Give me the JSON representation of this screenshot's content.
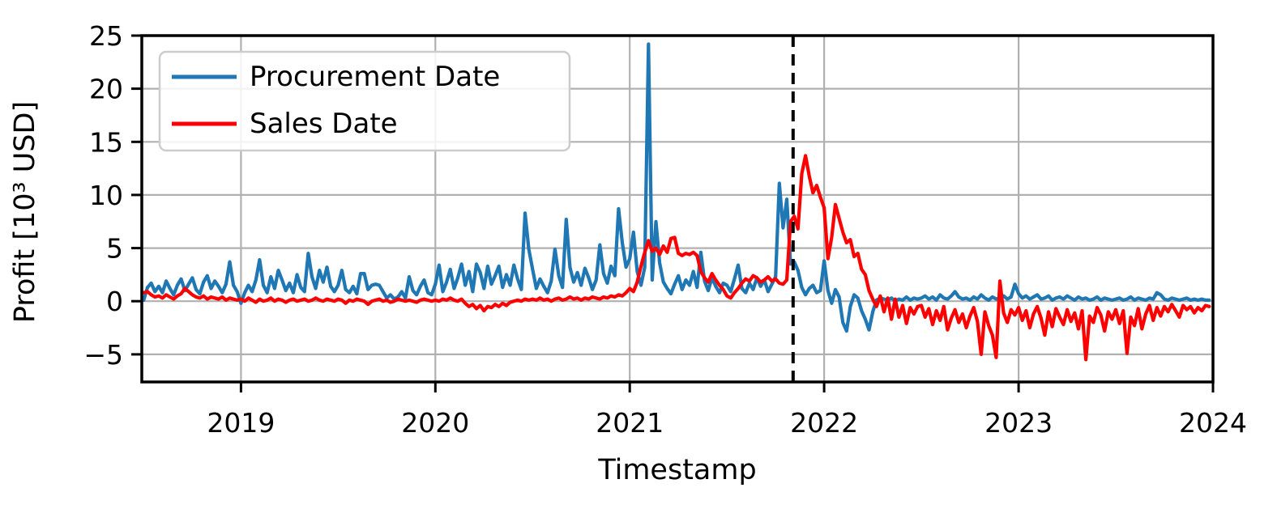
{
  "chart_data": {
    "type": "line",
    "title": "",
    "xlabel": "Timestamp",
    "ylabel": "Profit [10³ USD]",
    "xlim": [
      2018.49,
      2024.0
    ],
    "ylim": [
      -7.6,
      25
    ],
    "x_ticks": [
      2019,
      2020,
      2021,
      2022,
      2023,
      2024
    ],
    "x_tick_labels": [
      "2019",
      "2020",
      "2021",
      "2022",
      "2023",
      "2024"
    ],
    "y_ticks": [
      -5,
      0,
      5,
      10,
      15,
      20,
      25
    ],
    "y_tick_labels": [
      "−5",
      "0",
      "5",
      "10",
      "15",
      "20",
      "25"
    ],
    "grid": true,
    "legend_position": "upper left",
    "vline": {
      "x": 2021.84,
      "style": "dashed",
      "color": "#000000"
    },
    "x_start": 2018.5,
    "x_step": 0.0192308,
    "series": [
      {
        "name": "Procurement Date",
        "color": "#1f77b4",
        "values": [
          0.1,
          1.3,
          1.7,
          0.9,
          1.4,
          0.8,
          1.9,
          1.2,
          0.6,
          1.5,
          2.1,
          1.0,
          1.6,
          2.2,
          1.1,
          0.7,
          1.8,
          2.4,
          1.2,
          1.9,
          1.4,
          0.8,
          1.6,
          3.7,
          1.5,
          0.9,
          -0.2,
          0.8,
          1.5,
          0.9,
          2.0,
          3.9,
          1.5,
          0.8,
          2.3,
          1.2,
          2.9,
          2.0,
          1.0,
          1.7,
          0.8,
          2.5,
          1.3,
          0.9,
          4.5,
          2.3,
          1.2,
          2.9,
          1.8,
          3.2,
          1.4,
          0.9,
          1.5,
          2.9,
          1.1,
          0.8,
          1.4,
          0.7,
          2.6,
          2.6,
          1.1,
          1.5,
          1.6,
          1.5,
          0.9,
          0.3,
          0.6,
          0.2,
          0.4,
          0.9,
          0.3,
          2.3,
          1.0,
          0.6,
          1.4,
          2.0,
          0.8,
          0.6,
          1.6,
          3.4,
          0.9,
          1.8,
          3.0,
          1.2,
          2.2,
          3.5,
          1.5,
          2.8,
          0.9,
          3.5,
          2.7,
          1.2,
          3.3,
          1.6,
          2.4,
          3.3,
          1.3,
          2.5,
          1.5,
          3.4,
          2.1,
          1.1,
          8.3,
          4.9,
          3.0,
          1.2,
          2.1,
          1.4,
          0.8,
          1.9,
          4.9,
          2.4,
          1.3,
          7.7,
          3.2,
          1.8,
          2.7,
          1.5,
          3.1,
          2.2,
          1.1,
          2.0,
          5.3,
          2.6,
          1.7,
          3.3,
          2.4,
          8.7,
          5.5,
          3.2,
          4.0,
          6.5,
          2.8,
          1.5,
          3.2,
          24.2,
          2.0,
          7.5,
          3.6,
          1.8,
          1.2,
          0.7,
          1.6,
          2.4,
          1.1,
          2.0,
          1.5,
          2.8,
          1.3,
          4.6,
          1.9,
          1.0,
          2.2,
          1.4,
          0.8,
          1.7,
          1.5,
          0.9,
          2.1,
          3.4,
          1.2,
          0.8,
          1.7,
          1.1,
          2.2,
          1.4,
          2.0,
          0.9,
          1.6,
          2.3,
          11.1,
          6.9,
          9.6,
          3.5,
          3.7,
          2.9,
          1.3,
          0.6,
          1.2,
          1.5,
          0.8,
          1.0,
          3.8,
          1.0,
          -0.2,
          1.1,
          0.4,
          -2.0,
          -2.8,
          -0.5,
          0.6,
          0.3,
          -0.9,
          -1.7,
          -2.7,
          -1.0,
          0.1,
          0.3,
          0.2,
          0.1,
          0.3,
          0.0,
          0.2,
          0.1,
          0.4,
          0.1,
          0.3,
          0.2,
          0.3,
          0.5,
          0.2,
          0.4,
          0.1,
          0.6,
          0.3,
          0.2,
          0.5,
          0.9,
          0.4,
          0.2,
          0.3,
          0.1,
          0.4,
          0.2,
          0.6,
          0.3,
          0.1,
          0.4,
          0.2,
          0.3,
          0.5,
          0.2,
          0.4,
          1.6,
          0.7,
          0.3,
          0.5,
          0.2,
          0.4,
          0.6,
          0.2,
          0.3,
          0.5,
          0.1,
          0.3,
          0.4,
          0.2,
          0.5,
          0.3,
          0.1,
          0.4,
          0.2,
          0.3,
          0.1,
          0.2,
          0.4,
          0.1,
          0.3,
          0.2,
          0.1,
          0.2,
          0.3,
          0.1,
          0.2,
          0.4,
          0.1,
          0.3,
          0.2,
          0.1,
          0.3,
          0.2,
          0.8,
          0.6,
          0.2,
          0.1,
          0.3,
          0.2,
          0.1,
          0.2,
          0.3,
          0.1,
          0.2,
          0.1,
          0.2,
          0.1,
          0.1
        ]
      },
      {
        "name": "Sales Date",
        "color": "#ff0000",
        "values": [
          0.8,
          0.9,
          0.6,
          0.4,
          0.5,
          0.3,
          0.6,
          0.4,
          0.2,
          0.5,
          0.7,
          1.2,
          0.9,
          0.6,
          0.4,
          0.3,
          0.5,
          0.2,
          0.4,
          0.3,
          0.2,
          0.4,
          0.1,
          0.3,
          0.2,
          0.1,
          0.2,
          0.0,
          0.3,
          0.1,
          -0.1,
          0.2,
          0.0,
          0.1,
          0.3,
          0.0,
          0.2,
          0.1,
          -0.1,
          0.1,
          0.2,
          0.0,
          0.1,
          0.2,
          0.0,
          0.1,
          0.3,
          0.1,
          0.0,
          0.2,
          0.1,
          0.0,
          0.2,
          0.1,
          -0.2,
          0.1,
          0.0,
          0.2,
          0.1,
          0.0,
          -0.3,
          0.0,
          0.1,
          0.2,
          0.0,
          0.1,
          -0.1,
          0.0,
          0.2,
          0.1,
          0.0,
          0.1,
          0.0,
          -0.1,
          0.1,
          0.2,
          0.1,
          0.0,
          0.1,
          0.0,
          0.2,
          0.1,
          0.3,
          0.1,
          0.0,
          0.2,
          -0.2,
          -0.5,
          -0.3,
          -0.7,
          -0.4,
          -0.9,
          -0.5,
          -0.6,
          -0.3,
          -0.5,
          -0.2,
          -0.4,
          -0.1,
          0.0,
          0.1,
          0.0,
          0.2,
          0.1,
          0.2,
          0.1,
          0.3,
          0.1,
          0.2,
          0.0,
          0.2,
          0.3,
          0.1,
          0.2,
          0.4,
          0.2,
          0.3,
          0.1,
          0.3,
          0.2,
          0.4,
          0.3,
          0.2,
          0.4,
          0.3,
          0.5,
          0.4,
          0.6,
          0.5,
          0.8,
          1.2,
          0.9,
          1.8,
          3.3,
          4.6,
          5.7,
          4.7,
          5.0,
          4.4,
          5.2,
          4.6,
          5.9,
          6.0,
          4.5,
          4.3,
          4.5,
          4.4,
          4.6,
          4.3,
          2.8,
          2.2,
          1.8,
          2.6,
          2.0,
          1.5,
          1.1,
          0.5,
          0.3,
          0.8,
          1.2,
          1.7,
          2.1,
          1.9,
          2.4,
          2.2,
          1.8,
          2.0,
          2.3,
          1.9,
          2.1,
          1.7,
          1.6,
          2.0,
          7.5,
          8.0,
          6.8,
          12.0,
          13.7,
          11.8,
          10.2,
          10.9,
          9.8,
          8.8,
          4.0,
          6.0,
          9.1,
          7.8,
          6.5,
          5.5,
          5.8,
          4.2,
          4.5,
          3.0,
          2.5,
          1.0,
          0.2,
          -0.5,
          0.5,
          -1.0,
          0.3,
          -1.7,
          0.2,
          -1.5,
          -0.4,
          -2.1,
          -0.6,
          -1.2,
          -0.5,
          -0.4,
          -1.5,
          -0.7,
          -2.2,
          -0.9,
          -1.8,
          -0.5,
          -2.7,
          -1.6,
          -0.8,
          -2.0,
          -1.2,
          -2.5,
          -1.4,
          -0.6,
          -1.9,
          -5.0,
          -1.0,
          -2.3,
          -3.2,
          -5.3,
          1.9,
          -1.1,
          -2.0,
          -0.8,
          -1.3,
          -0.6,
          -1.8,
          -0.9,
          -2.5,
          -1.2,
          -0.5,
          -1.6,
          -3.2,
          -1.0,
          -2.4,
          -0.7,
          -1.5,
          -2.2,
          -0.8,
          -1.9,
          -1.1,
          -2.6,
          -0.9,
          -5.5,
          -1.4,
          -2.0,
          -0.6,
          -1.3,
          -2.8,
          -1.0,
          -1.7,
          -0.8,
          -2.1,
          -0.9,
          -4.9,
          -1.5,
          -2.3,
          -0.7,
          -2.6,
          -1.2,
          -0.4,
          -1.8,
          -0.6,
          -1.4,
          -0.5,
          -1.0,
          -0.3,
          -0.9,
          -1.5,
          -0.4,
          -0.8,
          -0.5,
          -1.1,
          -0.6,
          -0.9,
          -0.4,
          -0.5
        ]
      }
    ]
  },
  "legend": {
    "items": [
      {
        "label": "Procurement Date",
        "color": "#1f77b4"
      },
      {
        "label": "Sales Date",
        "color": "#ff0000"
      }
    ]
  }
}
